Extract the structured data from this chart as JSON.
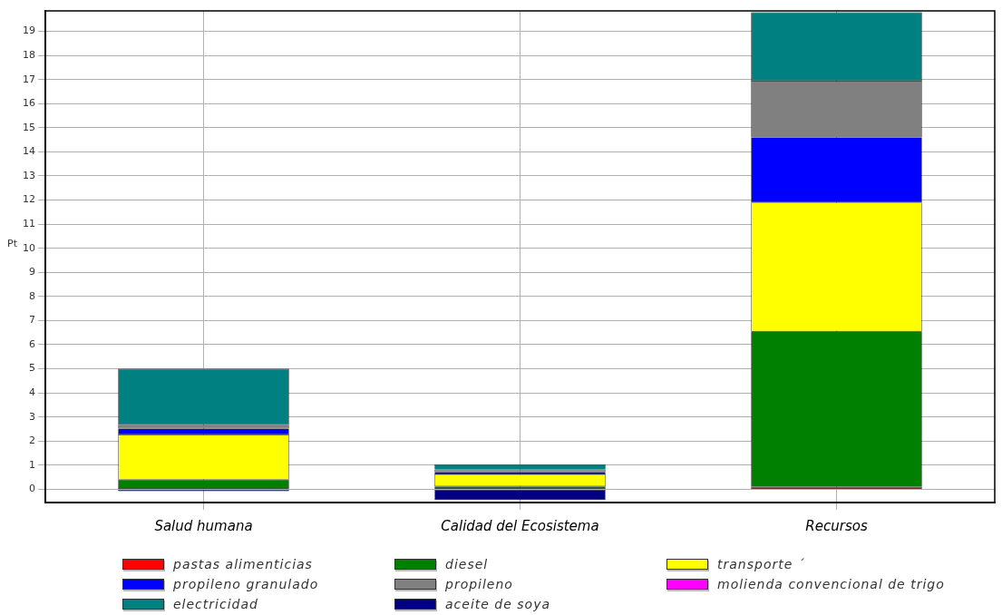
{
  "chart_data": {
    "type": "bar",
    "stacked": true,
    "ylabel": "Pt",
    "categories": [
      "Salud humana",
      "Calidad del Ecosistema",
      "Recursos"
    ],
    "series": [
      {
        "name": "pastas alimenticias",
        "color": "#ff0000",
        "values": [
          null,
          null,
          0.1
        ]
      },
      {
        "name": "diesel",
        "color": "#008000",
        "values": [
          0.4,
          0.12,
          6.45
        ]
      },
      {
        "name": "transporte ´",
        "color": "#ffff00",
        "values": [
          1.87,
          0.5,
          5.35
        ]
      },
      {
        "name": "propileno granulado",
        "color": "#0000ff",
        "values": [
          0.25,
          0.1,
          2.7
        ]
      },
      {
        "name": "propileno",
        "color": "#808080",
        "values": [
          0.15,
          0.1,
          2.35
        ]
      },
      {
        "name": "molienda convencional de trigo",
        "color": "#ff00ff",
        "values": [
          null,
          null,
          null
        ]
      },
      {
        "name": "electricidad",
        "color": "#008080",
        "values": [
          2.33,
          0.21,
          2.84
        ]
      },
      {
        "name": "aceite de soya",
        "color": "#000080",
        "values": [
          -0.08,
          -0.45,
          0
        ]
      }
    ],
    "ylim": [
      -0.55,
      19.85
    ],
    "yticks": [
      0,
      1,
      2,
      3,
      4,
      5,
      6,
      7,
      8,
      9,
      10,
      11,
      12,
      13,
      14,
      15,
      16,
      17,
      18,
      19
    ],
    "grid": true,
    "legend": "bottom"
  }
}
